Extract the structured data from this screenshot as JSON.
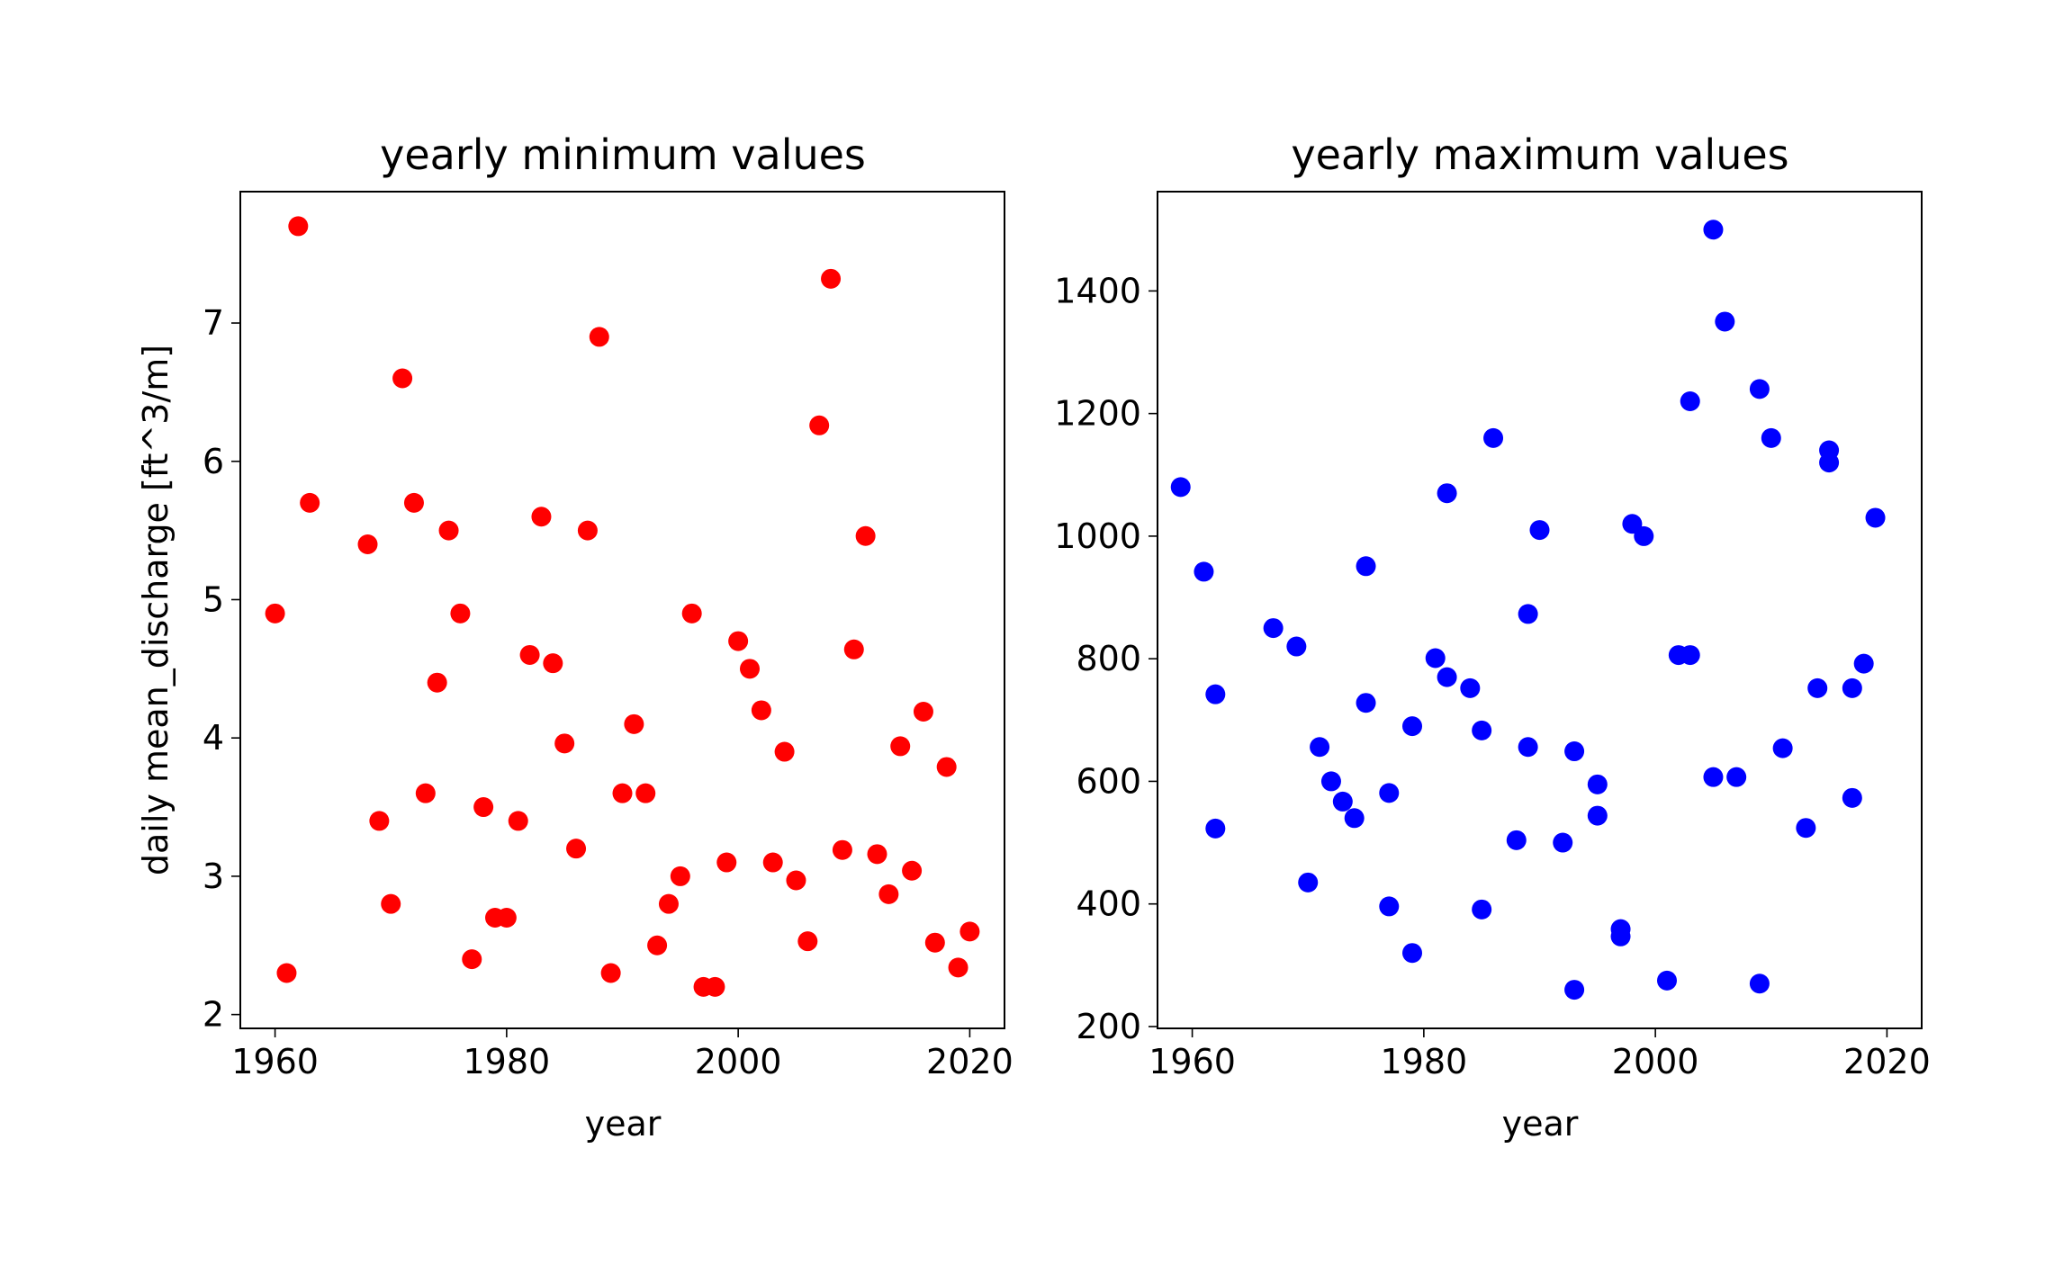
{
  "chart_data": [
    {
      "type": "scatter",
      "title": "yearly minimum values",
      "xlabel": "year",
      "ylabel": "daily mean_discharge [ft^3/m]",
      "xlim": [
        1957,
        2023
      ],
      "ylim": [
        1.9,
        7.95
      ],
      "xticks": [
        1960,
        1980,
        2000,
        2020
      ],
      "yticks": [
        2,
        3,
        4,
        5,
        6,
        7
      ],
      "color": "#ff0000",
      "grid": false,
      "x": [
        1960,
        1961,
        1962,
        1963,
        1968,
        1969,
        1970,
        1971,
        1972,
        1973,
        1974,
        1975,
        1976,
        1977,
        1978,
        1979,
        1980,
        1981,
        1982,
        1983,
        1984,
        1985,
        1986,
        1987,
        1988,
        1989,
        1990,
        1991,
        1992,
        1993,
        1994,
        1995,
        1996,
        1997,
        1998,
        1999,
        2000,
        2001,
        2002,
        2003,
        2004,
        2005,
        2006,
        2007,
        2008,
        2009,
        2010,
        2011,
        2012,
        2013,
        2014,
        2015,
        2016,
        2017,
        2018,
        2019,
        2020
      ],
      "y": [
        4.9,
        2.3,
        7.7,
        5.7,
        5.4,
        3.4,
        2.8,
        6.6,
        5.7,
        3.6,
        4.4,
        5.5,
        4.9,
        2.4,
        3.5,
        2.7,
        2.7,
        3.4,
        4.6,
        5.6,
        4.54,
        3.96,
        3.2,
        5.5,
        6.9,
        2.3,
        3.6,
        4.1,
        3.6,
        2.5,
        2.8,
        3.0,
        4.9,
        2.2,
        2.2,
        3.1,
        4.7,
        4.5,
        4.2,
        3.1,
        3.9,
        2.97,
        2.53,
        6.26,
        7.32,
        3.19,
        4.64,
        5.46,
        3.16,
        2.87,
        3.94,
        3.04,
        4.19,
        2.52,
        3.79,
        2.34,
        2.6
      ]
    },
    {
      "type": "scatter",
      "title": "yearly maximum values",
      "xlabel": "year",
      "ylabel": "",
      "xlim": [
        1957,
        2023
      ],
      "ylim": [
        197,
        1562
      ],
      "xticks": [
        1960,
        1980,
        2000,
        2020
      ],
      "yticks": [
        200,
        400,
        600,
        800,
        1000,
        1200,
        1400
      ],
      "color": "#0000ff",
      "grid": false,
      "x": [
        1959,
        1961,
        1962,
        1962,
        1967,
        1969,
        1970,
        1971,
        1972,
        1973,
        1974,
        1975,
        1975,
        1977,
        1977,
        1979,
        1979,
        1981,
        1982,
        1982,
        1984,
        1985,
        1985,
        1986,
        1988,
        1989,
        1989,
        1990,
        1992,
        1993,
        1993,
        1995,
        1995,
        1997,
        1997,
        1998,
        1999,
        2001,
        2002,
        2003,
        2003,
        2005,
        2005,
        2006,
        2007,
        2009,
        2009,
        2010,
        2011,
        2013,
        2014,
        2015,
        2015,
        2017,
        2017,
        2018,
        2019
      ],
      "y": [
        1080,
        942,
        742,
        523,
        850,
        820,
        435,
        656,
        600,
        567,
        540,
        951,
        728,
        581,
        396,
        690,
        320,
        801,
        1070,
        770,
        752,
        683,
        391,
        1160,
        504,
        873,
        656,
        1010,
        500,
        649,
        260,
        595,
        544,
        359,
        347,
        1020,
        1000,
        275,
        806,
        806,
        1220,
        1500,
        607,
        1350,
        607,
        1240,
        270,
        1160,
        654,
        524,
        752,
        1140,
        1120,
        752,
        573,
        792,
        1030
      ]
    }
  ]
}
